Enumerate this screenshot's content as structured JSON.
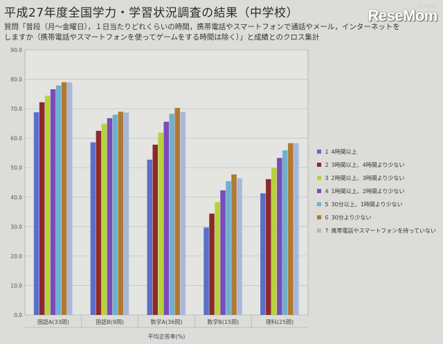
{
  "page": {
    "title": "平成27年度全国学力・学習状況調査の結果（中学校）",
    "question_line1": "質問「普段（月～金曜日），１日当たりどれくらいの時間，携帯電話やスマートフォンで通話やメール，インターネットを",
    "question_line2": "しますか（携帯電話やスマートフォンを使ってゲームをする時間は除く）」と成績とのクロス集計",
    "logo": "ReseMom",
    "logo_sub": "リセマム"
  },
  "chart_data": {
    "type": "bar",
    "xlabel": "平均正答率(%)",
    "ylabel": "",
    "ylim": [
      0,
      90
    ],
    "yticks": [
      "0.0",
      "10.0",
      "20.0",
      "30.0",
      "40.0",
      "50.0",
      "60.0",
      "70.0",
      "80.0",
      "90.0"
    ],
    "grid": true,
    "legend_position": "right",
    "categories": [
      "国語A(33問)",
      "国語B(9問)",
      "数学A(36問)",
      "数学B(15問)",
      "理科(25問)"
    ],
    "series": [
      {
        "name": "１ 4時間以上",
        "color": "#5b6ec8",
        "values": [
          68.8,
          58.6,
          52.7,
          29.7,
          41.3
        ]
      },
      {
        "name": "２ 3時間以上、4時間より少ない",
        "color": "#8b2a2a",
        "values": [
          72.2,
          62.5,
          57.8,
          34.4,
          46.1
        ]
      },
      {
        "name": "３ 2時間以上、3時間より少ない",
        "color": "#b6d23c",
        "values": [
          74.4,
          64.9,
          61.9,
          38.3,
          49.9
        ]
      },
      {
        "name": "４ 1時間以上、2時間より少ない",
        "color": "#7b4bb8",
        "values": [
          76.6,
          66.8,
          65.6,
          42.3,
          53.3
        ]
      },
      {
        "name": "５ 30分以上、1時間より少ない",
        "color": "#6fb0cf",
        "values": [
          77.9,
          68.0,
          68.3,
          45.4,
          55.9
        ]
      },
      {
        "name": "６ 30分より少ない",
        "color": "#b07a33",
        "values": [
          79.0,
          69.0,
          70.3,
          47.7,
          58.3
        ]
      },
      {
        "name": "７ 携帯電話やスマートフォンを持っていない",
        "color": "#a9b8d8",
        "values": [
          78.9,
          68.7,
          68.9,
          46.4,
          58.3
        ]
      }
    ]
  }
}
